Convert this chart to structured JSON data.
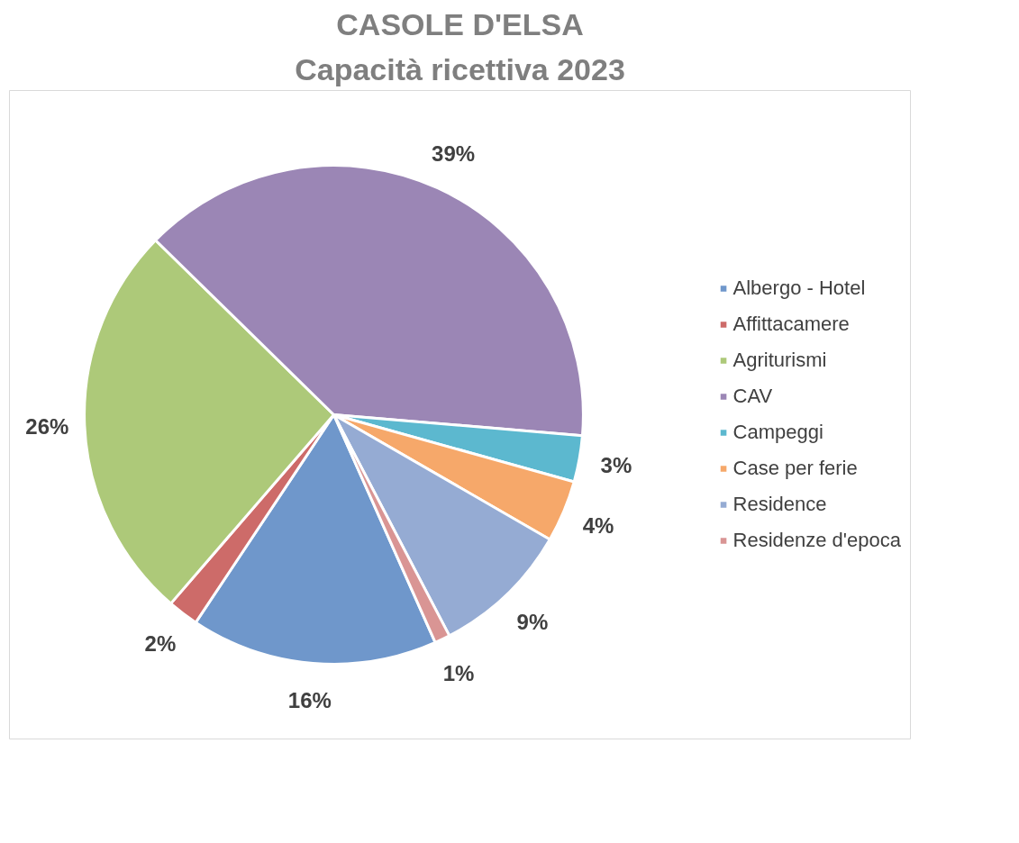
{
  "chart_data": {
    "type": "pie",
    "title": "CASOLE D'ELSA",
    "subtitle": "Capacità ricettiva 2023",
    "categories": [
      "Albergo - Hotel",
      "Affittacamere",
      "Agriturismi",
      "CAV",
      "Campeggi",
      "Case per ferie",
      "Residence",
      "Residenze d'epoca"
    ],
    "values": [
      16,
      2,
      26,
      39,
      3,
      4,
      9,
      1
    ],
    "colors": [
      "#6f97cb",
      "#cd6b69",
      "#adc979",
      "#9b86b5",
      "#5cb8cf",
      "#f6a86a",
      "#95abd3",
      "#d99594"
    ],
    "value_labels": [
      "16%",
      "2%",
      "26%",
      "39%",
      "3%",
      "4%",
      "9%",
      "1%"
    ],
    "legend": "right"
  }
}
